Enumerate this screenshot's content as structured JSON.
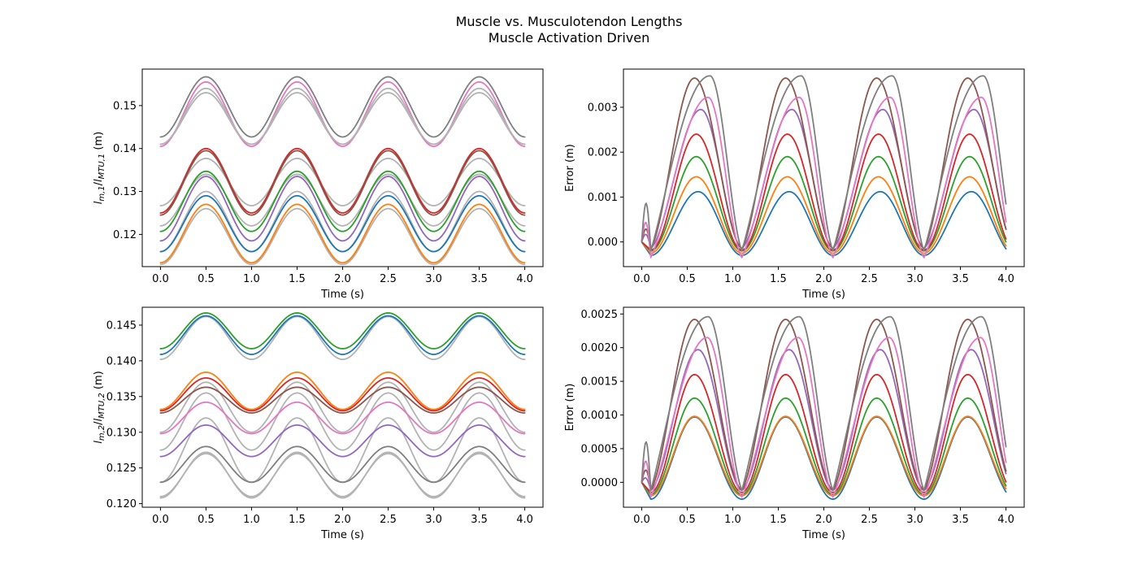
{
  "figure": {
    "title_line1": "Muscle vs. Musculotendon Lengths",
    "title_line2": "Muscle Activation Driven"
  },
  "chart_data": [
    {
      "type": "line",
      "panel": "top-left",
      "xlabel": "Time (s)",
      "ylabel_base": "l",
      "ylabel_sub": "m,1",
      "ylabel_sep": "/",
      "ylabel_base2": "l",
      "ylabel_sub2": "MTU,1",
      "ylabel_unit": " (m)",
      "xlim": [
        -0.2,
        4.2
      ],
      "ylim": [
        0.1125,
        0.1585
      ],
      "xticks": [
        0.0,
        0.5,
        1.0,
        1.5,
        2.0,
        2.5,
        3.0,
        3.5,
        4.0
      ],
      "xtick_labels": [
        "0.0",
        "0.5",
        "1.0",
        "1.5",
        "2.0",
        "2.5",
        "3.0",
        "3.5",
        "4.0"
      ],
      "yticks": [
        0.12,
        0.13,
        0.14,
        0.15
      ],
      "ytick_labels": [
        "0.12",
        "0.13",
        "0.14",
        "0.15"
      ],
      "series": [
        {
          "kind": "sine",
          "color": "#b3b3b3",
          "mean": 0.147,
          "amp": 0.006,
          "freq": 1.0
        },
        {
          "kind": "sine",
          "color": "#e377c2",
          "mean": 0.148,
          "amp": 0.0075,
          "freq": 1.0
        },
        {
          "kind": "sine",
          "color": "#7f7f7f",
          "mean": 0.1497,
          "amp": 0.007,
          "freq": 1.0
        },
        {
          "kind": "sine",
          "color": "#b3b3b3",
          "mean": 0.1475,
          "amp": 0.0065,
          "freq": 1.0
        },
        {
          "kind": "sine",
          "color": "#b3b3b3",
          "mean": 0.1322,
          "amp": 0.0055,
          "freq": 1.0
        },
        {
          "kind": "sine",
          "color": "#d62728",
          "mean": 0.1325,
          "amp": 0.0075,
          "freq": 1.0
        },
        {
          "kind": "sine",
          "color": "#8c564b",
          "mean": 0.132,
          "amp": 0.0075,
          "freq": 1.0
        },
        {
          "kind": "sine",
          "color": "#b3b3b3",
          "mean": 0.128,
          "amp": 0.006,
          "freq": 1.0
        },
        {
          "kind": "sine",
          "color": "#2ca02c",
          "mean": 0.1277,
          "amp": 0.007,
          "freq": 1.0
        },
        {
          "kind": "sine",
          "color": "#9467bd",
          "mean": 0.126,
          "amp": 0.0075,
          "freq": 1.0
        },
        {
          "kind": "sine",
          "color": "#b3b3b3",
          "mean": 0.123,
          "amp": 0.007,
          "freq": 1.0
        },
        {
          "kind": "sine",
          "color": "#1f77b4",
          "mean": 0.1225,
          "amp": 0.0065,
          "freq": 1.0
        },
        {
          "kind": "sine",
          "color": "#b3b3b3",
          "mean": 0.1195,
          "amp": 0.0065,
          "freq": 1.0
        },
        {
          "kind": "sine",
          "color": "#ff7f0e",
          "mean": 0.1202,
          "amp": 0.0068,
          "freq": 1.0
        }
      ]
    },
    {
      "type": "line",
      "panel": "top-right",
      "xlabel": "Time (s)",
      "ylabel": "Error (m)",
      "xlim": [
        -0.2,
        4.2
      ],
      "ylim": [
        -0.00055,
        0.00385
      ],
      "xticks": [
        0.0,
        0.5,
        1.0,
        1.5,
        2.0,
        2.5,
        3.0,
        3.5,
        4.0
      ],
      "xtick_labels": [
        "0.0",
        "0.5",
        "1.0",
        "1.5",
        "2.0",
        "2.5",
        "3.0",
        "3.5",
        "4.0"
      ],
      "yticks": [
        0.0,
        0.001,
        0.002,
        0.003
      ],
      "ytick_labels": [
        "0.000",
        "0.001",
        "0.002",
        "0.003"
      ],
      "series": [
        {
          "kind": "error",
          "color": "#1f77b4",
          "peak": 0.00112,
          "trough": -0.0003,
          "peak_phase": 0.62,
          "hump": 0.0
        },
        {
          "kind": "error",
          "color": "#ff7f0e",
          "peak": 0.00145,
          "trough": -0.00025,
          "peak_phase": 0.6,
          "hump": 0.0
        },
        {
          "kind": "error",
          "color": "#2ca02c",
          "peak": 0.0019,
          "trough": -0.0002,
          "peak_phase": 0.6,
          "hump": 0.0
        },
        {
          "kind": "error",
          "color": "#d62728",
          "peak": 0.0024,
          "trough": -0.00018,
          "peak_phase": 0.6,
          "hump": 0.0
        },
        {
          "kind": "error",
          "color": "#9467bd",
          "peak": 0.00295,
          "trough": -0.00015,
          "peak_phase": 0.65,
          "hump": 0.0004
        },
        {
          "kind": "error",
          "color": "#8c564b",
          "peak": 0.00365,
          "trough": -0.00015,
          "peak_phase": 0.58,
          "hump": 0.0006
        },
        {
          "kind": "error",
          "color": "#e377c2",
          "peak": 0.00322,
          "trough": -0.00035,
          "peak_phase": 0.73,
          "hump": 0.001
        },
        {
          "kind": "error",
          "color": "#7f7f7f",
          "peak": 0.0037,
          "trough": -0.0002,
          "peak_phase": 0.75,
          "hump": 0.0016
        }
      ]
    },
    {
      "type": "line",
      "panel": "bottom-left",
      "xlabel": "Time (s)",
      "ylabel_base": "l",
      "ylabel_sub": "m,2",
      "ylabel_sep": "/",
      "ylabel_base2": "l",
      "ylabel_sub2": "MTU,2",
      "ylabel_unit": " (m)",
      "xlim": [
        -0.2,
        4.2
      ],
      "ylim": [
        0.1195,
        0.1475
      ],
      "xticks": [
        0.0,
        0.5,
        1.0,
        1.5,
        2.0,
        2.5,
        3.0,
        3.5,
        4.0
      ],
      "xtick_labels": [
        "0.0",
        "0.5",
        "1.0",
        "1.5",
        "2.0",
        "2.5",
        "3.0",
        "3.5",
        "4.0"
      ],
      "yticks": [
        0.12,
        0.125,
        0.13,
        0.135,
        0.14,
        0.145
      ],
      "ytick_labels": [
        "0.120",
        "0.125",
        "0.130",
        "0.135",
        "0.140",
        "0.145"
      ],
      "series": [
        {
          "kind": "sine",
          "color": "#b3b3b3",
          "mean": 0.1432,
          "amp": 0.003,
          "freq": 1.0,
          "phase": 0.0
        },
        {
          "kind": "sine",
          "color": "#1f77b4",
          "mean": 0.1436,
          "amp": 0.0027,
          "freq": 1.0,
          "phase": 0.0
        },
        {
          "kind": "sine",
          "color": "#2ca02c",
          "mean": 0.1442,
          "amp": 0.0025,
          "freq": 1.0,
          "phase": 0.0
        },
        {
          "kind": "sine",
          "color": "#b3b3b3",
          "mean": 0.1335,
          "amp": 0.0035,
          "freq": 1.0,
          "phase": 0.0
        },
        {
          "kind": "sine",
          "color": "#ff7f0e",
          "mean": 0.1358,
          "amp": 0.0026,
          "freq": 1.0,
          "phase": 0.0
        },
        {
          "kind": "sine",
          "color": "#d62728",
          "mean": 0.1353,
          "amp": 0.0023,
          "freq": 1.0,
          "phase": 0.0
        },
        {
          "kind": "sine",
          "color": "#8c564b",
          "mean": 0.1345,
          "amp": 0.0018,
          "freq": 1.0,
          "phase": 0.0
        },
        {
          "kind": "sine",
          "color": "#b3b3b3",
          "mean": 0.1315,
          "amp": 0.004,
          "freq": 1.0,
          "phase": 0.0
        },
        {
          "kind": "sine",
          "color": "#e377c2",
          "mean": 0.132,
          "amp": 0.0022,
          "freq": 1.0,
          "phase": 0.0
        },
        {
          "kind": "sine",
          "color": "#b3b3b3",
          "mean": 0.1275,
          "amp": 0.0045,
          "freq": 1.0,
          "phase": 0.0
        },
        {
          "kind": "sine",
          "color": "#9467bd",
          "mean": 0.1288,
          "amp": 0.0022,
          "freq": 1.0,
          "phase": 0.0
        },
        {
          "kind": "sine",
          "color": "#b3b3b3",
          "mean": 0.124,
          "amp": 0.003,
          "freq": 1.0,
          "phase": 0.0
        },
        {
          "kind": "sine",
          "color": "#7f7f7f",
          "mean": 0.1255,
          "amp": 0.0025,
          "freq": 1.0,
          "phase": 0.0
        },
        {
          "kind": "sine",
          "color": "#b3b3b3",
          "mean": 0.124,
          "amp": 0.0032,
          "freq": 1.0,
          "phase": 0.0
        }
      ]
    },
    {
      "type": "line",
      "panel": "bottom-right",
      "xlabel": "Time (s)",
      "ylabel": "Error (m)",
      "xlim": [
        -0.2,
        4.2
      ],
      "ylim": [
        -0.00037,
        0.0026
      ],
      "xticks": [
        0.0,
        0.5,
        1.0,
        1.5,
        2.0,
        2.5,
        3.0,
        3.5,
        4.0
      ],
      "xtick_labels": [
        "0.0",
        "0.5",
        "1.0",
        "1.5",
        "2.0",
        "2.5",
        "3.0",
        "3.5",
        "4.0"
      ],
      "yticks": [
        0.0,
        0.0005,
        0.001,
        0.0015,
        0.002,
        0.0025
      ],
      "ytick_labels": [
        "0.0000",
        "0.0005",
        "0.0010",
        "0.0015",
        "0.0020",
        "0.0025"
      ],
      "series": [
        {
          "kind": "error",
          "color": "#1f77b4",
          "peak": 0.00097,
          "trough": -0.00025,
          "peak_phase": 0.58,
          "hump": 0.0
        },
        {
          "kind": "error",
          "color": "#ff7f0e",
          "peak": 0.00098,
          "trough": -0.0002,
          "peak_phase": 0.58,
          "hump": 0.0
        },
        {
          "kind": "error",
          "color": "#2ca02c",
          "peak": 0.00125,
          "trough": -0.00018,
          "peak_phase": 0.58,
          "hump": 0.0
        },
        {
          "kind": "error",
          "color": "#d62728",
          "peak": 0.0016,
          "trough": -0.00015,
          "peak_phase": 0.58,
          "hump": 0.0
        },
        {
          "kind": "error",
          "color": "#9467bd",
          "peak": 0.00197,
          "trough": -0.00012,
          "peak_phase": 0.62,
          "hump": 0.0002
        },
        {
          "kind": "error",
          "color": "#8c564b",
          "peak": 0.00242,
          "trough": -0.00012,
          "peak_phase": 0.58,
          "hump": 0.0004
        },
        {
          "kind": "error",
          "color": "#e377c2",
          "peak": 0.00215,
          "trough": -0.00022,
          "peak_phase": 0.72,
          "hump": 0.0007
        },
        {
          "kind": "error",
          "color": "#7f7f7f",
          "peak": 0.00246,
          "trough": -0.00012,
          "peak_phase": 0.73,
          "hump": 0.0011
        }
      ]
    }
  ]
}
